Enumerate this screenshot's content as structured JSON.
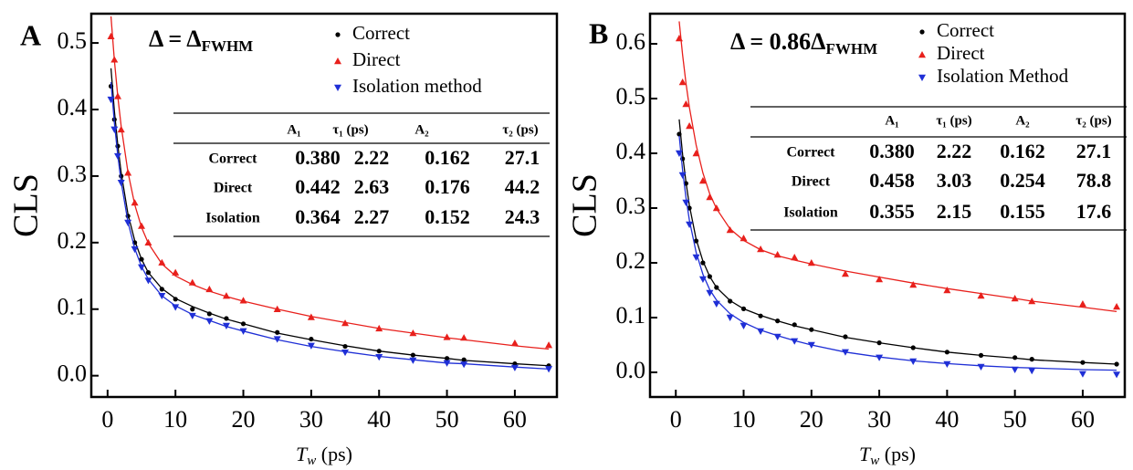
{
  "chart_data": [
    {
      "type": "scatter",
      "panel_label": "A",
      "title": "Δ =  Δ",
      "title_sub": "FWHM",
      "x_label": "T",
      "x_label_sub": "w",
      "x_label_unit": " (ps)",
      "y_label": "CLS",
      "xlim": [
        -2.4,
        66.2
      ],
      "ylim": [
        -0.032,
        0.544
      ],
      "xticks": [
        0,
        10,
        20,
        30,
        40,
        50,
        60
      ],
      "yticks": [
        {
          "value": 0,
          "label": "0.0"
        },
        0.1,
        0.2,
        0.3,
        0.4,
        0.5
      ],
      "x": [
        0.5,
        1,
        1.5,
        2,
        3,
        4,
        5,
        6,
        8,
        10,
        12.5,
        15,
        17.5,
        20,
        25,
        30,
        35,
        40,
        45,
        50,
        52.5,
        60,
        65
      ],
      "series": [
        {
          "name": "Correct",
          "color": "#000000",
          "marker": "circle",
          "values": [
            0.435,
            0.385,
            0.345,
            0.3,
            0.24,
            0.2,
            0.175,
            0.155,
            0.13,
            0.115,
            0.1,
            0.093,
            0.086,
            0.078,
            0.065,
            0.055,
            0.044,
            0.037,
            0.031,
            0.026,
            0.024,
            0.018,
            0.015
          ],
          "fit": [
            0.462,
            0.398,
            0.347,
            0.305,
            0.243,
            0.203,
            0.175,
            0.155,
            0.131,
            0.116,
            0.104,
            0.094,
            0.085,
            0.078,
            0.064,
            0.054,
            0.045,
            0.037,
            0.031,
            0.026,
            0.023,
            0.018,
            0.015
          ]
        },
        {
          "name": "Direct",
          "color": "#e8201c",
          "marker": "triangle-up",
          "values": [
            0.51,
            0.475,
            0.42,
            0.37,
            0.305,
            0.26,
            0.225,
            0.2,
            0.17,
            0.155,
            0.14,
            0.13,
            0.12,
            0.113,
            0.1,
            0.088,
            0.079,
            0.071,
            0.064,
            0.058,
            0.057,
            0.049,
            0.046
          ],
          "fit": [
            0.54,
            0.474,
            0.42,
            0.375,
            0.306,
            0.257,
            0.223,
            0.199,
            0.168,
            0.15,
            0.137,
            0.127,
            0.119,
            0.112,
            0.1,
            0.089,
            0.08,
            0.071,
            0.064,
            0.057,
            0.054,
            0.045,
            0.04
          ]
        },
        {
          "name": "Isolation method",
          "color": "#1f2fd6",
          "marker": "triangle-down",
          "values": [
            0.415,
            0.37,
            0.33,
            0.29,
            0.23,
            0.19,
            0.163,
            0.143,
            0.12,
            0.103,
            0.09,
            0.082,
            0.075,
            0.067,
            0.055,
            0.045,
            0.035,
            0.028,
            0.023,
            0.019,
            0.017,
            0.012,
            0.01
          ],
          "fit": [
            0.441,
            0.38,
            0.331,
            0.291,
            0.231,
            0.191,
            0.164,
            0.145,
            0.12,
            0.105,
            0.092,
            0.083,
            0.074,
            0.067,
            0.054,
            0.044,
            0.036,
            0.029,
            0.024,
            0.019,
            0.018,
            0.013,
            0.01
          ]
        }
      ],
      "table": {
        "header": [
          "A₁",
          "τ₁ (ps)",
          "A₂",
          "τ₂ (ps)"
        ],
        "rows": [
          [
            "Correct",
            "0.380",
            "2.22",
            "0.162",
            "27.1"
          ],
          [
            "Direct",
            "0.442",
            "2.63",
            "0.176",
            "44.2"
          ],
          [
            "Isolation",
            "0.364",
            "2.27",
            "0.152",
            "24.3"
          ]
        ]
      }
    },
    {
      "type": "scatter",
      "panel_label": "B",
      "title": "Δ =  0.86Δ",
      "title_sub": "FWHM",
      "x_label": "T",
      "x_label_sub": "w",
      "x_label_unit": " (ps)",
      "y_label": "CLS",
      "xlim": [
        -3.8,
        66.2
      ],
      "ylim": [
        -0.045,
        0.655
      ],
      "xticks": [
        0,
        10,
        20,
        30,
        40,
        50,
        60
      ],
      "yticks": [
        {
          "value": 0,
          "label": "0.0"
        },
        0.1,
        0.2,
        0.3,
        0.4,
        0.5,
        0.6
      ],
      "x": [
        0.5,
        1,
        1.5,
        2,
        3,
        4,
        5,
        6,
        8,
        10,
        12.5,
        15,
        17.5,
        20,
        25,
        30,
        35,
        40,
        45,
        50,
        52.5,
        60,
        65
      ],
      "series": [
        {
          "name": "Correct",
          "color": "#000000",
          "marker": "circle",
          "values": [
            0.435,
            0.39,
            0.345,
            0.3,
            0.24,
            0.2,
            0.175,
            0.155,
            0.13,
            0.116,
            0.103,
            0.094,
            0.087,
            0.078,
            0.065,
            0.054,
            0.045,
            0.037,
            0.031,
            0.027,
            0.024,
            0.018,
            0.015
          ],
          "fit": [
            0.462,
            0.398,
            0.347,
            0.305,
            0.243,
            0.203,
            0.175,
            0.155,
            0.131,
            0.116,
            0.104,
            0.094,
            0.085,
            0.078,
            0.064,
            0.054,
            0.045,
            0.037,
            0.031,
            0.026,
            0.023,
            0.018,
            0.015
          ]
        },
        {
          "name": "Direct",
          "color": "#e8201c",
          "marker": "triangle-up",
          "values": [
            0.61,
            0.53,
            0.49,
            0.45,
            0.4,
            0.35,
            0.32,
            0.3,
            0.26,
            0.245,
            0.225,
            0.215,
            0.21,
            0.2,
            0.18,
            0.17,
            0.16,
            0.15,
            0.14,
            0.135,
            0.13,
            0.125,
            0.12
          ],
          "fit": [
            0.641,
            0.58,
            0.528,
            0.484,
            0.415,
            0.364,
            0.326,
            0.299,
            0.262,
            0.241,
            0.224,
            0.213,
            0.205,
            0.198,
            0.185,
            0.174,
            0.163,
            0.153,
            0.144,
            0.135,
            0.13,
            0.119,
            0.111
          ]
        },
        {
          "name": "Isolation Method",
          "color": "#1f2fd6",
          "marker": "triangle-down",
          "values": [
            0.4,
            0.36,
            0.31,
            0.27,
            0.21,
            0.17,
            0.145,
            0.125,
            0.1,
            0.085,
            0.075,
            0.065,
            0.057,
            0.05,
            0.037,
            0.027,
            0.02,
            0.015,
            0.01,
            0.005,
            0.003,
            -0.003,
            -0.004
          ],
          "fit": [
            0.432,
            0.369,
            0.319,
            0.278,
            0.219,
            0.179,
            0.151,
            0.132,
            0.107,
            0.091,
            0.077,
            0.067,
            0.058,
            0.05,
            0.037,
            0.028,
            0.021,
            0.016,
            0.012,
            0.009,
            0.008,
            0.005,
            0.004
          ]
        }
      ],
      "table": {
        "header": [
          "A₁",
          "τ₁ (ps)",
          "A₂",
          "τ₂ (ps)"
        ],
        "rows": [
          [
            "Correct",
            "0.380",
            "2.22",
            "0.162",
            "27.1"
          ],
          [
            "Direct",
            "0.458",
            "3.03",
            "0.254",
            "78.8"
          ],
          [
            "Isolation",
            "0.355",
            "2.15",
            "0.155",
            "17.6"
          ]
        ]
      }
    }
  ]
}
